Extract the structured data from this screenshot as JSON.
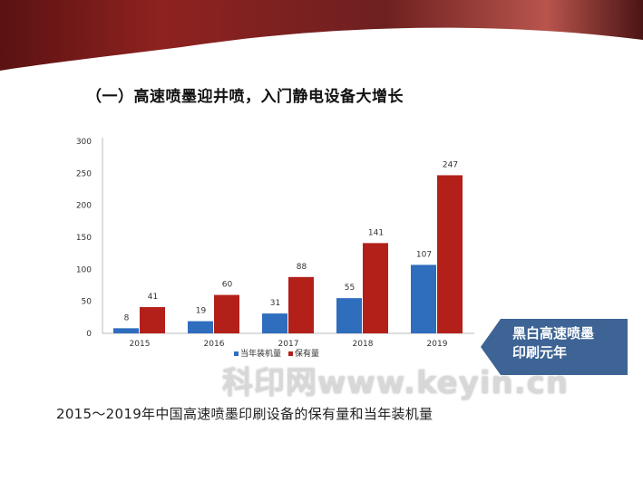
{
  "slide": {
    "title": "（一）高速喷墨迎井喷，入门静电设备大增长",
    "caption": "2015～2019年中国高速喷墨印刷设备的保有量和当年装机量",
    "callout": [
      "黑白高速喷墨",
      "印刷元年"
    ],
    "watermark": "科印网www.keyin.cn",
    "colors": {
      "banner": "#8b1e1e",
      "callout": "#3d6494"
    }
  },
  "chart_data": {
    "type": "bar",
    "categories": [
      "2015",
      "2016",
      "2017",
      "2018",
      "2019"
    ],
    "series": [
      {
        "name": "当年装机量",
        "values": [
          8,
          19,
          31,
          55,
          107
        ],
        "color": "#2f6dbd"
      },
      {
        "name": "保有量",
        "values": [
          41,
          60,
          88,
          141,
          247
        ],
        "color": "#b3201a"
      }
    ],
    "yticks": [
      "0",
      "50",
      "100",
      "150",
      "200",
      "250",
      "300"
    ],
    "ylim": [
      0,
      300
    ],
    "grid": false,
    "legend": "bottom",
    "data_labels": true
  }
}
